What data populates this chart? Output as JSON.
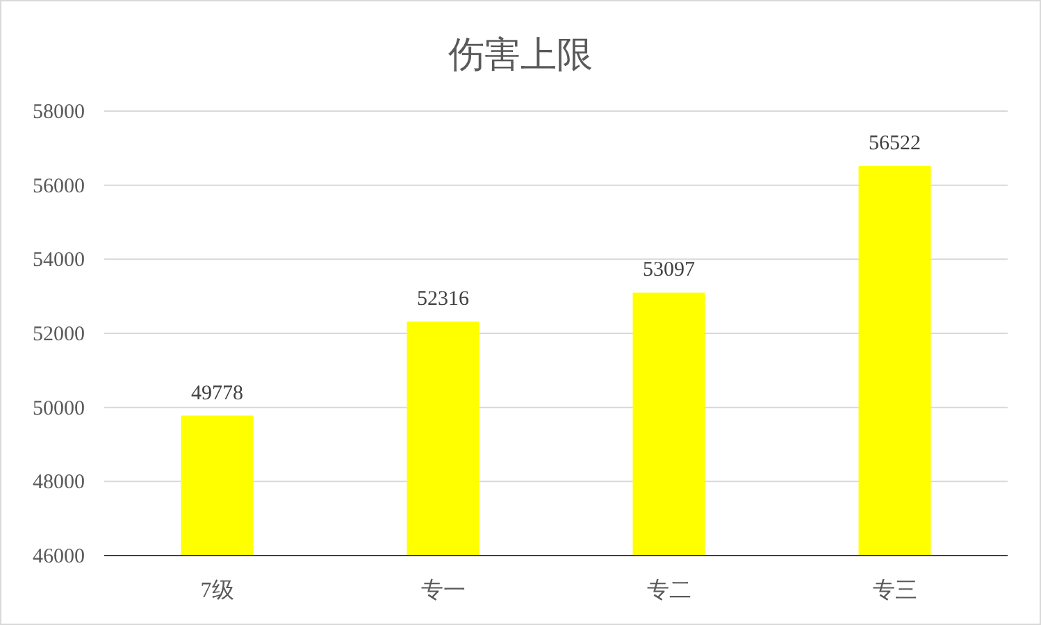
{
  "chart_data": {
    "type": "bar",
    "title": "伤害上限",
    "categories": [
      "7级",
      "专一",
      "专二",
      "专三"
    ],
    "values": [
      49778,
      52316,
      53097,
      56522
    ],
    "color": "#ffff00",
    "ylim": [
      46000,
      58000
    ],
    "yticks": [
      46000,
      48000,
      50000,
      52000,
      54000,
      56000,
      58000
    ],
    "grid": "y",
    "data_labels": true
  }
}
